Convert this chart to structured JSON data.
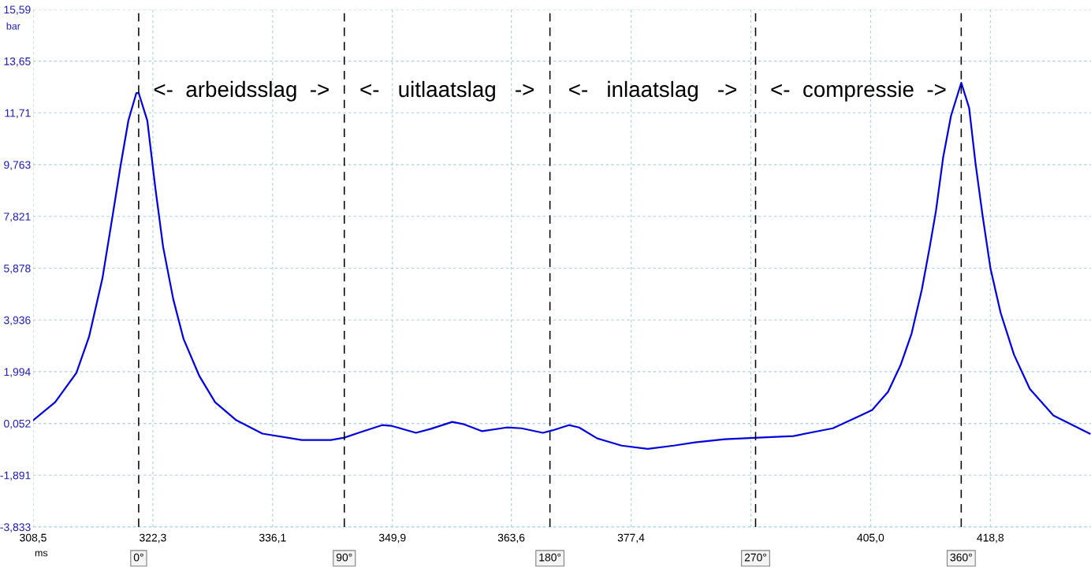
{
  "chart_data": {
    "type": "line",
    "xlabel": "ms",
    "ylabel": "bar",
    "x": [
      308.5,
      311.04,
      313.49,
      314.95,
      316.49,
      317.67,
      318.58,
      319.48,
      320.39,
      320.67,
      321.66,
      322.57,
      323.48,
      324.66,
      325.84,
      327.66,
      329.47,
      331.92,
      334.92,
      339.46,
      342.82,
      344.36,
      346.27,
      348.72,
      349.81,
      352.62,
      354.35,
      356.8,
      358.16,
      360.25,
      363.07,
      364.79,
      367.24,
      368.33,
      370.24,
      371.42,
      373.51,
      376.32,
      379.32,
      382.31,
      384.76,
      388.21,
      392.03,
      396.11,
      400.65,
      403.65,
      405.19,
      407.01,
      408.46,
      409.73,
      410.91,
      411.82,
      412.54,
      413.36,
      414.27,
      415.45,
      416.36,
      417.09,
      417.9,
      418.81,
      419.99,
      421.53,
      423.35,
      426.07,
      430.25
    ],
    "series": [
      {
        "color": "#0000dd",
        "values": [
          0.17,
          0.85,
          1.95,
          3.31,
          5.5,
          7.87,
          9.73,
          11.42,
          12.45,
          12.45,
          11.42,
          8.93,
          6.68,
          4.7,
          3.22,
          1.83,
          0.85,
          0.17,
          -0.33,
          -0.57,
          -0.57,
          -0.48,
          -0.27,
          -0.01,
          -0.04,
          -0.3,
          -0.15,
          0.11,
          0.02,
          -0.24,
          -0.1,
          -0.13,
          -0.3,
          -0.21,
          -0.01,
          -0.1,
          -0.51,
          -0.78,
          -0.9,
          -0.78,
          -0.66,
          -0.54,
          -0.48,
          -0.42,
          -0.13,
          0.32,
          0.56,
          1.24,
          2.24,
          3.43,
          5.08,
          6.68,
          8.04,
          10.03,
          11.6,
          12.84,
          11.89,
          9.82,
          7.87,
          5.88,
          4.2,
          2.63,
          1.35,
          0.35,
          -0.33
        ]
      }
    ],
    "xlim": [
      308.5,
      430.4
    ],
    "ylim": [
      -3.833,
      15.59
    ],
    "xticks": [
      {
        "value": 308.5,
        "label": "308,5"
      },
      {
        "value": 322.3,
        "label": "322,3"
      },
      {
        "value": 336.1,
        "label": "336,1"
      },
      {
        "value": 349.9,
        "label": "349,9"
      },
      {
        "value": 363.6,
        "label": "363,6"
      },
      {
        "value": 377.4,
        "label": "377,4"
      },
      {
        "value": 391.2,
        "label": null
      },
      {
        "value": 405.0,
        "label": "405,0"
      },
      {
        "value": 418.8,
        "label": "418,8"
      }
    ],
    "yticks": [
      {
        "value": -3.833,
        "label": "-3,833"
      },
      {
        "value": -1.891,
        "label": "-1,891"
      },
      {
        "value": 0.052,
        "label": "0,052"
      },
      {
        "value": 1.994,
        "label": "1,994"
      },
      {
        "value": 3.936,
        "label": "3,936"
      },
      {
        "value": 5.878,
        "label": "5,878"
      },
      {
        "value": 7.821,
        "label": "7,821"
      },
      {
        "value": 9.763,
        "label": "9,763"
      },
      {
        "value": 11.71,
        "label": "11,71"
      },
      {
        "value": 13.65,
        "label": "13,65"
      },
      {
        "value": 15.59,
        "label": "15,59"
      }
    ],
    "grid": true,
    "marker": "none",
    "line_style": "solid",
    "x2lim": [
      -46.2,
      416.8
    ],
    "x2ticks": [
      {
        "value": 0,
        "label": "0°"
      },
      {
        "value": 90,
        "label": "90°"
      },
      {
        "value": 180,
        "label": "180°"
      },
      {
        "value": 270,
        "label": "270°"
      },
      {
        "value": 360,
        "label": "360°"
      }
    ],
    "annotations": [
      "<-  arbeidsslag  ->",
      "<-   uitlaatslag   ->",
      "<-   inlaatslag   ->",
      "<-  compressie  ->"
    ]
  }
}
